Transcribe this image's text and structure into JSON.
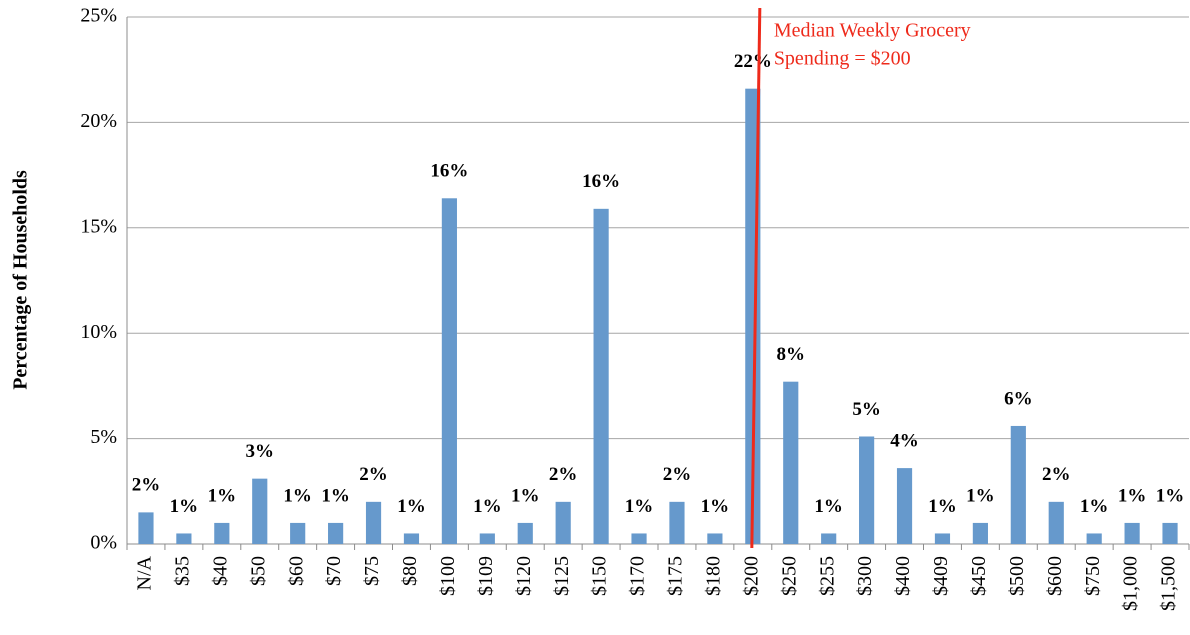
{
  "chart_data": {
    "type": "bar",
    "y_label": "Percentage of Households",
    "categories": [
      "N/A",
      "$35",
      "$40",
      "$50",
      "$60",
      "$70",
      "$75",
      "$80",
      "$100",
      "$109",
      "$120",
      "$125",
      "$150",
      "$170",
      "$175",
      "$180",
      "$200",
      "$250",
      "$255",
      "$300",
      "$400",
      "$409",
      "$450",
      "$500",
      "$600",
      "$750",
      "$1,000",
      "$1,500"
    ],
    "values": [
      1.5,
      0.5,
      1.0,
      3.1,
      1.0,
      1.0,
      2.0,
      0.5,
      16.4,
      0.5,
      1.0,
      2.0,
      15.9,
      0.5,
      2.0,
      0.5,
      21.6,
      7.7,
      0.5,
      5.1,
      3.6,
      0.5,
      1.0,
      5.6,
      2.0,
      0.5,
      1.0,
      1.0
    ],
    "value_labels": [
      "2%",
      "1%",
      "1%",
      "3%",
      "1%",
      "1%",
      "2%",
      "1%",
      "16%",
      "1%",
      "1%",
      "2%",
      "16%",
      "1%",
      "2%",
      "1%",
      "22%",
      "8%",
      "1%",
      "5%",
      "4%",
      "1%",
      "1%",
      "6%",
      "2%",
      "1%",
      "1%",
      "1%"
    ],
    "color": "#6699cc",
    "ylim": [
      0,
      25
    ],
    "yticks": [
      {
        "value": 0,
        "label": "0%"
      },
      {
        "value": 5,
        "label": "5%"
      },
      {
        "value": 10,
        "label": "10%"
      },
      {
        "value": 15,
        "label": "15%"
      },
      {
        "value": 20,
        "label": "20%"
      },
      {
        "value": 25,
        "label": "25%"
      }
    ],
    "grid": true,
    "annotation": {
      "text": [
        "Median Weekly Grocery",
        "Spending = $200"
      ],
      "at": "$200",
      "color": "#ee2a1b"
    }
  }
}
